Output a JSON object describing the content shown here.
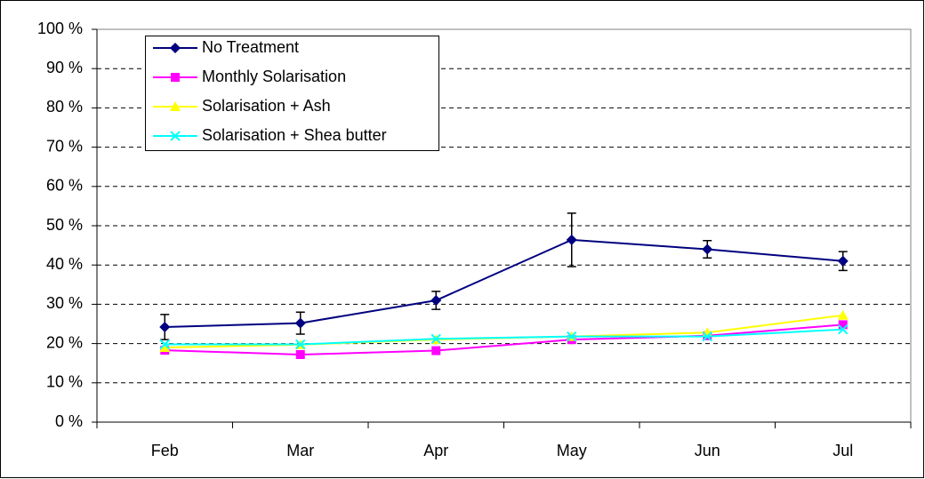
{
  "chart_data": {
    "type": "line",
    "categories": [
      "Feb",
      "Mar",
      "Apr",
      "May",
      "Jun",
      "Jul"
    ],
    "series": [
      {
        "name": "No Treatment",
        "color": "#000080",
        "marker": "diamond",
        "values": [
          24.2,
          25.2,
          31,
          46.4,
          44,
          41
        ],
        "errors": [
          3.2,
          2.8,
          2.3,
          6.8,
          2.2,
          2.4
        ]
      },
      {
        "name": "Monthly Solarisation",
        "color": "#ff00ff",
        "marker": "square",
        "values": [
          18.3,
          17.2,
          18.2,
          21,
          22,
          24.8
        ]
      },
      {
        "name": "Solarisation + Ash",
        "color": "#ffff00",
        "marker": "triangle",
        "values": [
          19,
          19.7,
          21,
          21.8,
          22.8,
          27.2
        ]
      },
      {
        "name": "Solarisation + Shea butter",
        "color": "#00ffff",
        "marker": "x",
        "values": [
          19.8,
          19.8,
          21.2,
          21.8,
          21.8,
          23.6
        ]
      }
    ],
    "ylim": [
      0,
      100
    ],
    "yticks": [
      {
        "value": 0,
        "label": "0 %"
      },
      {
        "value": 10,
        "label": "10 %"
      },
      {
        "value": 20,
        "label": "20 %"
      },
      {
        "value": 30,
        "label": "30 %"
      },
      {
        "value": 40,
        "label": "40 %"
      },
      {
        "value": 50,
        "label": "50 %"
      },
      {
        "value": 60,
        "label": "60 %"
      },
      {
        "value": 70,
        "label": "70 %"
      },
      {
        "value": 80,
        "label": "80 %"
      },
      {
        "value": 90,
        "label": "90 %"
      },
      {
        "value": 100,
        "label": "100 %"
      }
    ],
    "grid": true,
    "legend": "upper left"
  }
}
